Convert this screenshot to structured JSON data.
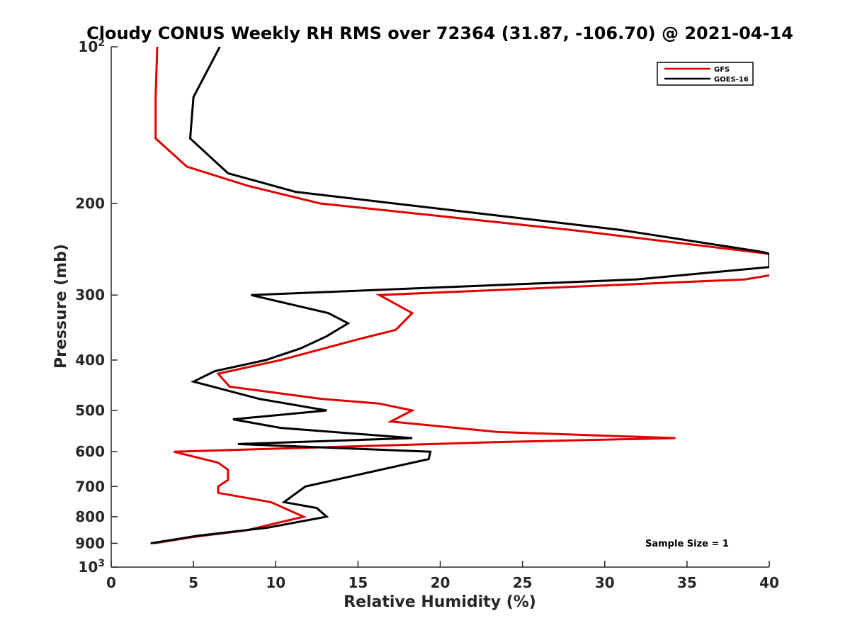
{
  "chart_data": {
    "type": "line",
    "title": "Cloudy CONUS Weekly RH RMS over 72364 (31.87, -106.70) @ 2021-04-14",
    "xlabel": "Relative Humidity (%)",
    "ylabel": "Pressure (mb)",
    "xlim": [
      0,
      40
    ],
    "ylim": [
      100,
      1000
    ],
    "y_scale": "log",
    "y_reversed": true,
    "grid": false,
    "legend_position": "top-right",
    "x_ticks": [
      "0",
      "5",
      "10",
      "15",
      "20",
      "25",
      "30",
      "35",
      "40"
    ],
    "y_ticks": [
      {
        "value": 100,
        "base": "10",
        "exp": "2"
      },
      {
        "value": 200,
        "label": "200"
      },
      {
        "value": 300,
        "label": "300"
      },
      {
        "value": 400,
        "label": "400"
      },
      {
        "value": 500,
        "label": "500"
      },
      {
        "value": 600,
        "label": "600"
      },
      {
        "value": 700,
        "label": "700"
      },
      {
        "value": 800,
        "label": "800"
      },
      {
        "value": 900,
        "label": "900"
      },
      {
        "value": 1000,
        "base": "10",
        "exp": "3"
      }
    ],
    "annotation": "Sample Size = 1",
    "series": [
      {
        "name": "GFS",
        "color": "#e00000",
        "points": [
          [
            2.8,
            100
          ],
          [
            2.7,
            125
          ],
          [
            2.7,
            150
          ],
          [
            4.6,
            170
          ],
          [
            8.3,
            185
          ],
          [
            12.7,
            200
          ],
          [
            28.0,
            225
          ],
          [
            40.0,
            250
          ],
          [
            40.5,
            270
          ],
          [
            40.0,
            275
          ],
          [
            38.5,
            280
          ],
          [
            16.3,
            300
          ],
          [
            18.3,
            325
          ],
          [
            17.3,
            350
          ],
          [
            15.0,
            365
          ],
          [
            10.3,
            400
          ],
          [
            6.5,
            425
          ],
          [
            7.2,
            450
          ],
          [
            12.8,
            475
          ],
          [
            16.3,
            485
          ],
          [
            18.3,
            500
          ],
          [
            17.0,
            525
          ],
          [
            23.5,
            550
          ],
          [
            34.3,
            565
          ],
          [
            23.5,
            575
          ],
          [
            3.8,
            600
          ],
          [
            6.5,
            630
          ],
          [
            7.1,
            650
          ],
          [
            7.1,
            680
          ],
          [
            6.5,
            700
          ],
          [
            6.5,
            720
          ],
          [
            9.7,
            750
          ],
          [
            11.7,
            800
          ],
          [
            8.2,
            850
          ],
          [
            5.0,
            875
          ],
          [
            2.6,
            900
          ]
        ]
      },
      {
        "name": "GOES-16",
        "color": "#000000",
        "points": [
          [
            6.6,
            100
          ],
          [
            5.0,
            125
          ],
          [
            4.8,
            150
          ],
          [
            7.1,
            175
          ],
          [
            11.2,
            190
          ],
          [
            17.2,
            200
          ],
          [
            31.0,
            225
          ],
          [
            39.6,
            248
          ],
          [
            40.0,
            250
          ],
          [
            40.0,
            265
          ],
          [
            31.9,
            280
          ],
          [
            8.5,
            300
          ],
          [
            13.2,
            325
          ],
          [
            14.4,
            340
          ],
          [
            13.1,
            360
          ],
          [
            11.5,
            380
          ],
          [
            9.4,
            400
          ],
          [
            6.3,
            420
          ],
          [
            5.0,
            440
          ],
          [
            9.0,
            475
          ],
          [
            13.1,
            500
          ],
          [
            7.4,
            520
          ],
          [
            10.3,
            540
          ],
          [
            18.3,
            565
          ],
          [
            7.7,
            580
          ],
          [
            19.4,
            600
          ],
          [
            19.3,
            620
          ],
          [
            11.8,
            700
          ],
          [
            10.5,
            750
          ],
          [
            12.5,
            770
          ],
          [
            13.1,
            800
          ],
          [
            9.5,
            840
          ],
          [
            5.3,
            870
          ],
          [
            2.4,
            900
          ]
        ]
      }
    ]
  }
}
